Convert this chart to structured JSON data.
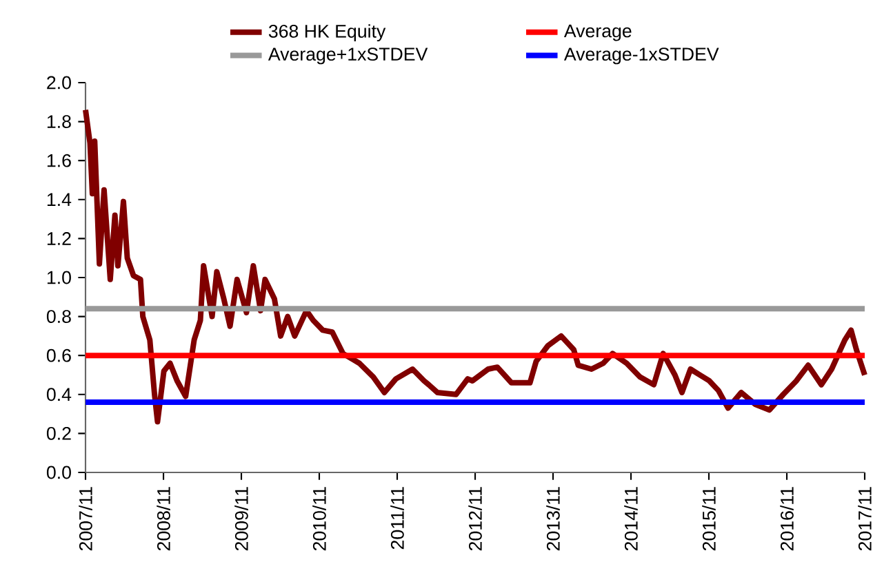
{
  "chart_data": {
    "type": "line",
    "x": [
      "2007-11-01",
      "2007-11-22",
      "2007-12-03",
      "2007-12-14",
      "2008-01-05",
      "2008-01-27",
      "2008-02-25",
      "2008-03-18",
      "2008-04-01",
      "2008-04-27",
      "2008-05-15",
      "2008-06-13",
      "2008-07-16",
      "2008-07-27",
      "2008-08-29",
      "2008-09-20",
      "2008-10-04",
      "2008-11-03",
      "2008-12-02",
      "2009-01-04",
      "2009-02-13",
      "2009-03-25",
      "2009-04-23",
      "2009-05-08",
      "2009-06-17",
      "2009-07-09",
      "2009-08-11",
      "2009-09-09",
      "2009-10-12",
      "2009-11-25",
      "2009-12-27",
      "2010-01-30",
      "2010-02-20",
      "2010-04-05",
      "2010-05-04",
      "2010-06-06",
      "2010-07-09",
      "2010-09-02",
      "2010-10-04",
      "2010-11-17",
      "2011-01-01",
      "2011-02-20",
      "2011-05-08",
      "2011-07-12",
      "2011-09-02",
      "2011-10-26",
      "2012-01-12",
      "2012-03-06",
      "2012-03-28",
      "2012-05-08",
      "2012-08-03",
      "2012-09-27",
      "2012-10-19",
      "2013-01-01",
      "2013-02-13",
      "2013-04-20",
      "2013-07-16",
      "2013-08-14",
      "2013-10-08",
      "2013-12-09",
      "2014-02-06",
      "2014-02-27",
      "2014-04-30",
      "2014-06-24",
      "2014-08-07",
      "2014-10-12",
      "2014-12-13",
      "2015-02-16",
      "2015-04-01",
      "2015-05-26",
      "2015-06-28",
      "2015-08-07",
      "2015-11-03",
      "2015-12-16",
      "2016-01-30",
      "2016-04-01",
      "2016-06-05",
      "2016-08-11",
      "2016-10-15",
      "2016-12-16",
      "2017-02-09",
      "2017-04-12",
      "2017-05-30",
      "2017-07-31",
      "2017-08-29",
      "2017-09-23",
      "2017-11-01"
    ],
    "series": [
      {
        "name": "368 HK Equity",
        "color": "#800000",
        "values": [
          1.86,
          1.69,
          1.43,
          1.7,
          1.07,
          1.45,
          0.99,
          1.32,
          1.06,
          1.39,
          1.1,
          1.01,
          0.99,
          0.8,
          0.68,
          0.4,
          0.26,
          0.52,
          0.56,
          0.47,
          0.39,
          0.68,
          0.78,
          1.06,
          0.8,
          1.03,
          0.89,
          0.75,
          0.99,
          0.82,
          1.06,
          0.83,
          0.99,
          0.89,
          0.7,
          0.8,
          0.7,
          0.83,
          0.78,
          0.73,
          0.72,
          0.61,
          0.56,
          0.49,
          0.41,
          0.48,
          0.53,
          0.47,
          0.45,
          0.41,
          0.4,
          0.48,
          0.47,
          0.53,
          0.54,
          0.46,
          0.46,
          0.57,
          0.65,
          0.7,
          0.63,
          0.55,
          0.53,
          0.56,
          0.61,
          0.56,
          0.49,
          0.45,
          0.61,
          0.5,
          0.41,
          0.53,
          0.47,
          0.42,
          0.33,
          0.41,
          0.35,
          0.32,
          0.4,
          0.47,
          0.55,
          0.45,
          0.53,
          0.68,
          0.73,
          0.63,
          0.5
        ]
      }
    ],
    "ref_lines": [
      {
        "axis": "y",
        "value": 0.6,
        "label": "Average",
        "color": "#ff0000"
      },
      {
        "axis": "y",
        "value": 0.84,
        "label": "Average+1xSTDEV",
        "color": "#999999"
      },
      {
        "axis": "y",
        "value": 0.36,
        "label": "Average-1xSTDEV",
        "color": "#0000ff"
      }
    ],
    "xlim": [
      "2007-11",
      "2017-11"
    ],
    "xticks": [
      {
        "value": "2007-11",
        "label": "2007/11"
      },
      {
        "value": "2008-11",
        "label": "2008/11"
      },
      {
        "value": "2009-11",
        "label": "2009/11"
      },
      {
        "value": "2010-11",
        "label": "2010/11"
      },
      {
        "value": "2011-11",
        "label": "2011/11"
      },
      {
        "value": "2012-11",
        "label": "2012/11"
      },
      {
        "value": "2013-11",
        "label": "2013/11"
      },
      {
        "value": "2014-11",
        "label": "2014/11"
      },
      {
        "value": "2015-11",
        "label": "2015/11"
      },
      {
        "value": "2016-11",
        "label": "2016/11"
      },
      {
        "value": "2017-11",
        "label": "2017/11"
      }
    ],
    "ylim": [
      0,
      2.0
    ],
    "yticks": [
      {
        "value": 0,
        "label": "0.0"
      },
      {
        "value": 0.2,
        "label": "0.2"
      },
      {
        "value": 0.4,
        "label": "0.4"
      },
      {
        "value": 0.6,
        "label": "0.6"
      },
      {
        "value": 0.8,
        "label": "0.8"
      },
      {
        "value": 1.0,
        "label": "1.0"
      },
      {
        "value": 1.2,
        "label": "1.2"
      },
      {
        "value": 1.4,
        "label": "1.4"
      },
      {
        "value": 1.6,
        "label": "1.6"
      },
      {
        "value": 1.8,
        "label": "1.8"
      },
      {
        "value": 2.0,
        "label": "2.0"
      }
    ],
    "legend": "top"
  }
}
